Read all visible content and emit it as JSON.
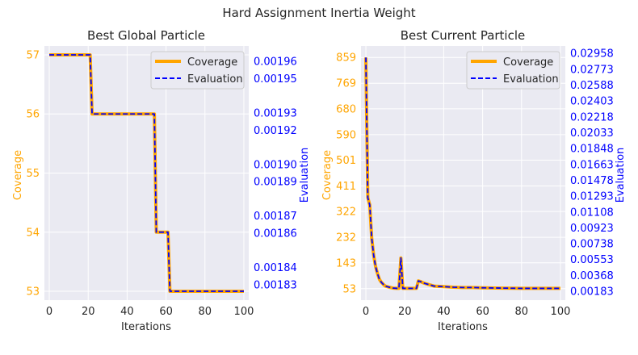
{
  "figure": {
    "suptitle": "Hard Assignment Inertia Weight",
    "colors": {
      "coverage": "#FFA500",
      "evaluation": "#0000FF",
      "panel_bg": "#EAEAF2",
      "grid": "#FFFFFF",
      "text": "#262626"
    }
  },
  "chart_data": [
    {
      "type": "line",
      "title": "Best Global Particle",
      "xlabel": "Iterations",
      "ylabel_left": "Coverage",
      "ylabel_right": "Evaluation",
      "xlim": [
        -2.5,
        102.5
      ],
      "xticks": [
        "0",
        "20",
        "40",
        "60",
        "80",
        "100"
      ],
      "ylim_left": [
        52.85,
        57.15
      ],
      "yticks_left": [
        "53",
        "54",
        "55",
        "56",
        "57"
      ],
      "ylim_right": [
        0.001821,
        0.001969
      ],
      "yticks_right": [
        "0.00183",
        "0.00184",
        "0.00186",
        "0.00187",
        "0.00189",
        "0.00190",
        "0.00192",
        "0.00193",
        "0.00195",
        "0.00196"
      ],
      "grid": true,
      "legend": {
        "placement": "top-right",
        "entries": [
          "Coverage",
          "Evaluation"
        ]
      },
      "series": [
        {
          "name": "Coverage",
          "axis": "left",
          "style": "solid",
          "x": [
            0,
            21,
            22,
            54,
            55,
            61,
            62,
            100
          ],
          "y": [
            57,
            57,
            56,
            56,
            54,
            54,
            53,
            53
          ]
        },
        {
          "name": "Evaluation",
          "axis": "left",
          "style": "dashed",
          "x": [
            0,
            21,
            22,
            54,
            55,
            61,
            62,
            100
          ],
          "y": [
            57,
            57,
            56,
            56,
            54,
            54,
            53,
            53
          ]
        }
      ]
    },
    {
      "type": "line",
      "title": "Best Current Particle",
      "xlabel": "Iterations",
      "ylabel_left": "Coverage",
      "ylabel_right": "Evaluation",
      "xlim": [
        -2.5,
        102.5
      ],
      "xticks": [
        "0",
        "20",
        "40",
        "60",
        "80",
        "100"
      ],
      "ylim_left": [
        13,
        899
      ],
      "yticks_left": [
        "53",
        "143",
        "232",
        "322",
        "411",
        "501",
        "590",
        "680",
        "769",
        "859"
      ],
      "ylim_right": [
        0.0008,
        0.03045
      ],
      "yticks_right": [
        "0.00183",
        "0.00368",
        "0.00553",
        "0.00738",
        "0.00923",
        "0.01108",
        "0.01293",
        "0.01478",
        "0.01663",
        "0.01848",
        "0.02033",
        "0.02218",
        "0.02403",
        "0.02588",
        "0.02773",
        "0.02958"
      ],
      "grid": true,
      "legend": {
        "placement": "top-right",
        "entries": [
          "Coverage",
          "Evaluation"
        ]
      },
      "series": [
        {
          "name": "Coverage",
          "axis": "left",
          "style": "solid",
          "x": [
            0,
            1,
            2,
            3,
            4,
            5,
            6,
            7,
            8,
            9,
            10,
            12,
            14,
            16,
            17,
            18,
            19,
            20,
            22,
            24,
            26,
            27,
            28,
            30,
            32,
            35,
            40,
            45,
            50,
            55,
            60,
            70,
            80,
            90,
            100
          ],
          "y": [
            859,
            370,
            345,
            230,
            170,
            130,
            105,
            85,
            75,
            68,
            62,
            58,
            55,
            54,
            54,
            160,
            54,
            54,
            54,
            54,
            54,
            80,
            78,
            72,
            68,
            62,
            60,
            58,
            57,
            57,
            56,
            55,
            54,
            54,
            54
          ]
        },
        {
          "name": "Evaluation",
          "axis": "left",
          "style": "dashed",
          "x": [
            0,
            1,
            2,
            3,
            4,
            5,
            6,
            7,
            8,
            9,
            10,
            12,
            14,
            16,
            17,
            18,
            19,
            20,
            22,
            24,
            26,
            27,
            28,
            30,
            32,
            35,
            40,
            45,
            50,
            55,
            60,
            70,
            80,
            90,
            100
          ],
          "y": [
            859,
            370,
            345,
            230,
            170,
            130,
            105,
            85,
            75,
            68,
            62,
            58,
            55,
            54,
            54,
            160,
            54,
            54,
            54,
            54,
            54,
            80,
            78,
            72,
            68,
            62,
            60,
            58,
            57,
            57,
            56,
            55,
            54,
            54,
            54
          ]
        }
      ]
    }
  ]
}
